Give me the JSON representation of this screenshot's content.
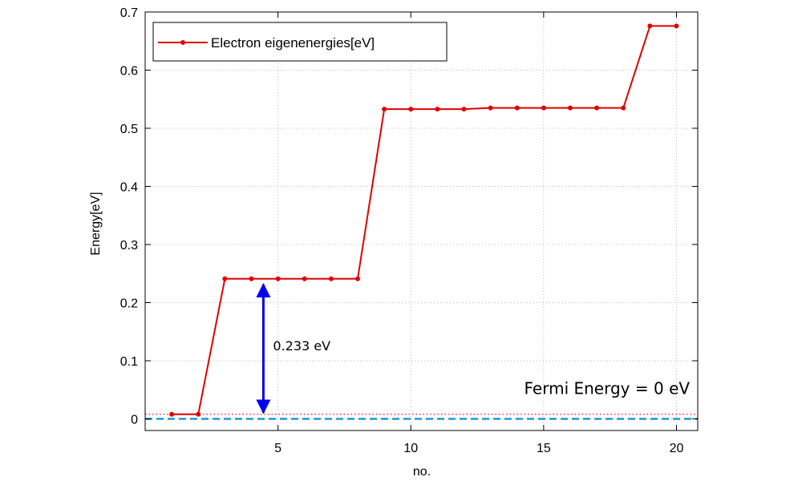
{
  "chart_data": {
    "type": "line",
    "xlabel": "no.",
    "ylabel": "Energy[eV]",
    "xlim": [
      0.0,
      20.8
    ],
    "ylim": [
      -0.02,
      0.7
    ],
    "xticks": [
      5,
      10,
      15,
      20
    ],
    "xtick_labels": [
      "5",
      "10",
      "15",
      "20"
    ],
    "yticks": [
      0,
      0.1,
      0.2,
      0.3,
      0.4,
      0.5,
      0.6,
      0.7
    ],
    "ytick_labels": [
      "0",
      "0.1",
      "0.2",
      "0.3",
      "0.4",
      "0.5",
      "0.6",
      "0.7"
    ],
    "grid": true,
    "legend_position": "top-left",
    "series": [
      {
        "name": "Electron eigenenergies[eV]",
        "color": "#e00000",
        "marker": "circle",
        "x": [
          1,
          2,
          3,
          4,
          5,
          6,
          7,
          8,
          9,
          10,
          11,
          12,
          13,
          14,
          15,
          16,
          17,
          18,
          19,
          20
        ],
        "y": [
          0.008,
          0.008,
          0.241,
          0.241,
          0.241,
          0.241,
          0.241,
          0.241,
          0.533,
          0.533,
          0.533,
          0.533,
          0.535,
          0.535,
          0.535,
          0.535,
          0.535,
          0.535,
          0.676,
          0.676
        ]
      }
    ],
    "reference_lines": [
      {
        "y": 0.008,
        "style": "dotted",
        "color": "#ff3030"
      },
      {
        "y": 0.0,
        "style": "dashed",
        "color": "#1a9ad6"
      }
    ],
    "annotations": [
      {
        "text": "0.233 eV",
        "x_arrow": 4.45,
        "y_from": 0.008,
        "y_to": 0.241,
        "arrow_color": "#0000ee"
      },
      {
        "text": "Fermi Energy = 0 eV",
        "anchor_x": 20.5,
        "anchor_y": 0.043
      }
    ]
  }
}
